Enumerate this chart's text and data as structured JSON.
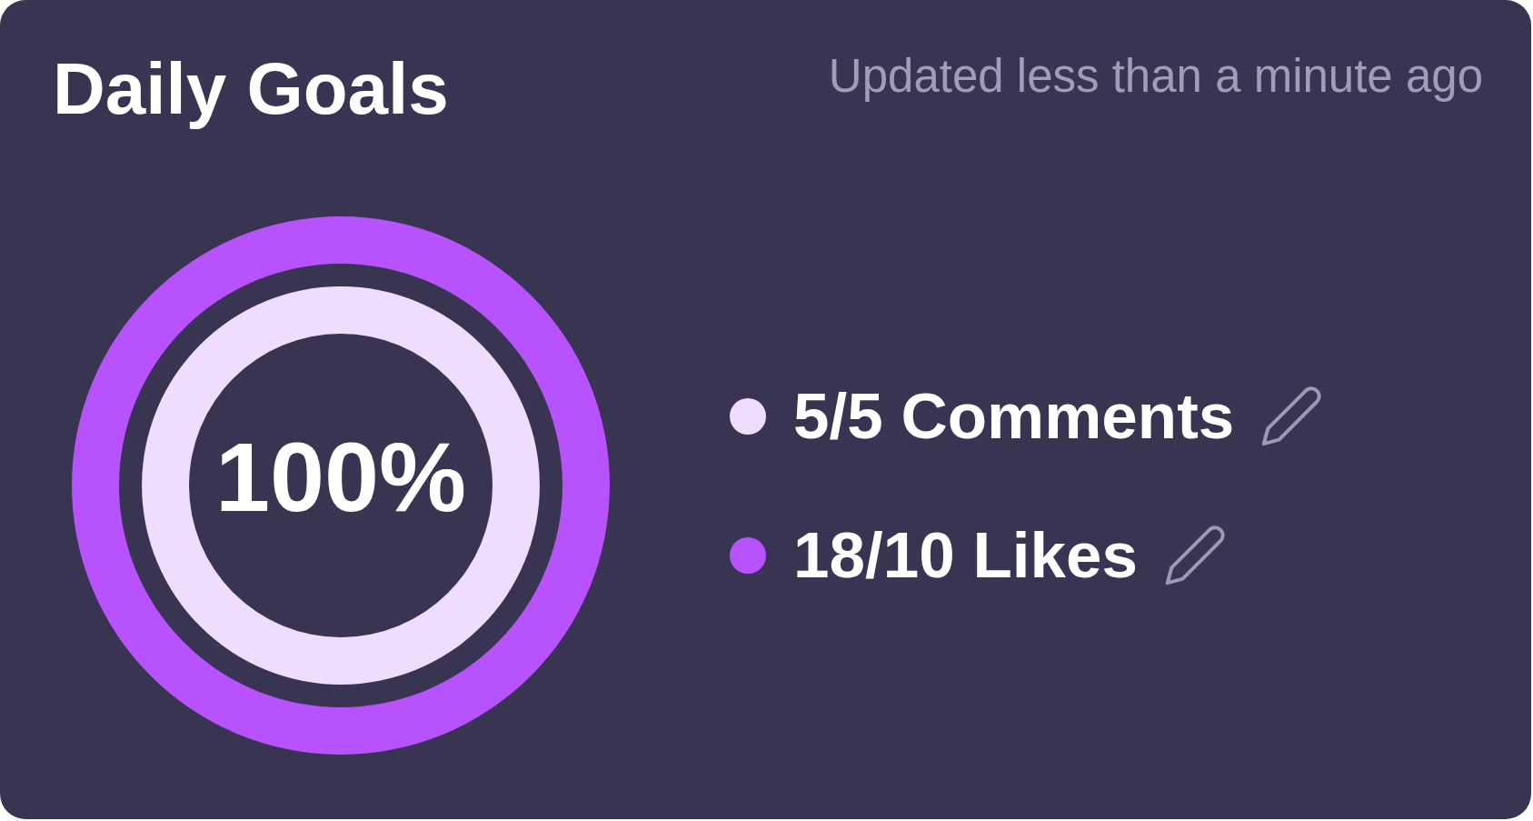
{
  "chart_data": {
    "type": "donut",
    "title": "Daily Goals",
    "subtitle": "Updated less than a minute ago",
    "categories": [
      null
    ],
    "series": [
      {
        "name": "18/10 Likes",
        "color": "#b752fd",
        "values": [
          100
        ]
      },
      {
        "name": "5/5 Comments",
        "color": "#f0dcfd",
        "values": [
          100
        ]
      }
    ],
    "annotations": [
      "100%"
    ],
    "legend": "right"
  }
}
